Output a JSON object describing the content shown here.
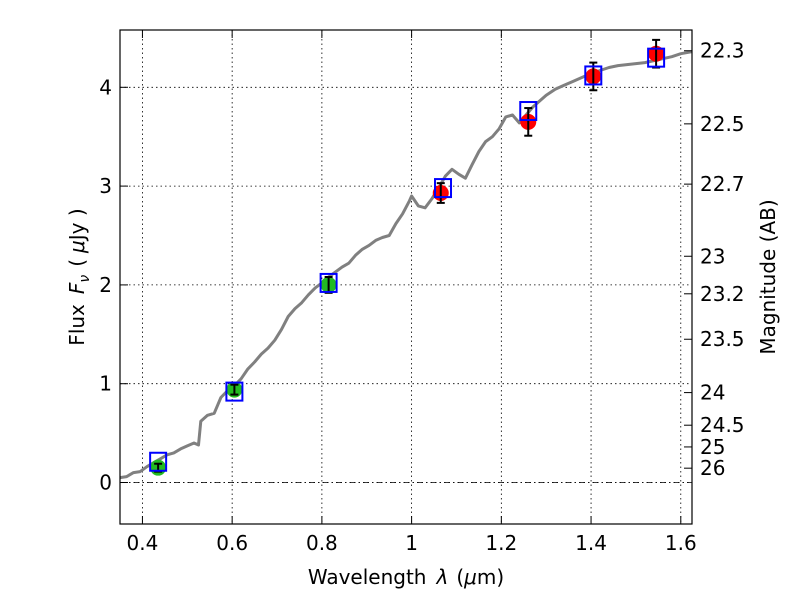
{
  "chart_data": {
    "type": "scatter",
    "xlabel": "Wavelength",
    "xlabel_symbol": "λ",
    "xlabel_unit_prefix": "(",
    "xlabel_unit_mu": "μ",
    "xlabel_unit_rest": "m)",
    "ylabel": "Flux",
    "ylabel_symbol": "F",
    "ylabel_subscript": "ν",
    "ylabel_unit_prefix": "(",
    "ylabel_unit_mu": "μ",
    "ylabel_unit_rest": "Jy )",
    "y2label": "Magnitude (AB)",
    "xlim": [
      0.35,
      1.625
    ],
    "ylim": [
      -0.42,
      4.58
    ],
    "x_ticks": [
      0.4,
      0.6,
      0.8,
      1.0,
      1.2,
      1.4,
      1.6
    ],
    "x_tick_labels": [
      "0.4",
      "0.6",
      "0.8",
      "1",
      "1.2",
      "1.4",
      "1.6"
    ],
    "y_ticks": [
      0,
      1,
      2,
      3,
      4
    ],
    "y_tick_labels": [
      "0",
      "1",
      "2",
      "3",
      "4"
    ],
    "y2_ticks": [
      {
        "label": "22.3",
        "flux": 4.37
      },
      {
        "label": "22.5",
        "flux": 3.63
      },
      {
        "label": "22.7",
        "flux": 3.02
      },
      {
        "label": "23",
        "flux": 2.29
      },
      {
        "label": "23.2",
        "flux": 1.91
      },
      {
        "label": "23.5",
        "flux": 1.45
      },
      {
        "label": "24",
        "flux": 0.91
      },
      {
        "label": "24.5",
        "flux": 0.58
      },
      {
        "label": "25",
        "flux": 0.36
      },
      {
        "label": "26",
        "flux": 0.145
      }
    ],
    "grid": true,
    "colors": {
      "model": "#808080",
      "photometry_green": "#22bb22",
      "photometry_red": "#ff0000",
      "model_box": "#0000ff",
      "errorbar": "#000000",
      "zero_line": "#000000"
    },
    "series": [
      {
        "name": "model spectrum",
        "style": "line",
        "x": [
          0.35,
          0.365,
          0.38,
          0.395,
          0.41,
          0.425,
          0.44,
          0.455,
          0.47,
          0.485,
          0.5,
          0.515,
          0.525,
          0.53,
          0.545,
          0.56,
          0.575,
          0.59,
          0.605,
          0.62,
          0.635,
          0.65,
          0.665,
          0.68,
          0.695,
          0.71,
          0.725,
          0.74,
          0.755,
          0.77,
          0.785,
          0.8,
          0.815,
          0.83,
          0.845,
          0.86,
          0.875,
          0.89,
          0.905,
          0.92,
          0.935,
          0.95,
          0.965,
          0.98,
          0.995,
          1.0,
          1.015,
          1.03,
          1.045,
          1.06,
          1.075,
          1.09,
          1.105,
          1.12,
          1.135,
          1.15,
          1.165,
          1.18,
          1.195,
          1.21,
          1.225,
          1.24,
          1.255,
          1.27,
          1.285,
          1.3,
          1.32,
          1.34,
          1.36,
          1.38,
          1.4,
          1.42,
          1.44,
          1.46,
          1.48,
          1.5,
          1.52,
          1.54,
          1.56,
          1.58,
          1.6,
          1.625
        ],
        "y": [
          0.05,
          0.06,
          0.1,
          0.11,
          0.16,
          0.2,
          0.24,
          0.28,
          0.3,
          0.34,
          0.37,
          0.4,
          0.38,
          0.62,
          0.68,
          0.7,
          0.86,
          0.93,
          0.98,
          1.05,
          1.15,
          1.22,
          1.3,
          1.36,
          1.44,
          1.55,
          1.68,
          1.76,
          1.82,
          1.9,
          1.97,
          2.02,
          2.08,
          2.13,
          2.18,
          2.22,
          2.3,
          2.36,
          2.4,
          2.45,
          2.48,
          2.5,
          2.62,
          2.72,
          2.85,
          2.9,
          2.8,
          2.78,
          2.87,
          2.98,
          3.1,
          3.17,
          3.12,
          3.08,
          3.22,
          3.35,
          3.45,
          3.5,
          3.58,
          3.7,
          3.72,
          3.64,
          3.72,
          3.8,
          3.86,
          3.92,
          3.98,
          4.02,
          4.06,
          4.1,
          4.14,
          4.17,
          4.2,
          4.22,
          4.23,
          4.24,
          4.25,
          4.27,
          4.29,
          4.31,
          4.34,
          4.36
        ]
      },
      {
        "name": "model photometry",
        "style": "open-square",
        "x": [
          0.435,
          0.605,
          0.815,
          1.07,
          1.26,
          1.405,
          1.545
        ],
        "y": [
          0.21,
          0.92,
          2.02,
          2.98,
          3.76,
          4.12,
          4.3
        ]
      },
      {
        "name": "observed (green)",
        "style": "filled-circle",
        "x": [
          0.435,
          0.605,
          0.815
        ],
        "y": [
          0.15,
          0.94,
          2.0
        ],
        "yerr": [
          0.04,
          0.05,
          0.08
        ]
      },
      {
        "name": "observed (red)",
        "style": "filled-circle",
        "x": [
          1.065,
          1.26,
          1.405,
          1.545
        ],
        "y": [
          2.93,
          3.65,
          4.11,
          4.34
        ],
        "yerr": [
          0.1,
          0.14,
          0.14,
          0.14
        ]
      }
    ]
  }
}
